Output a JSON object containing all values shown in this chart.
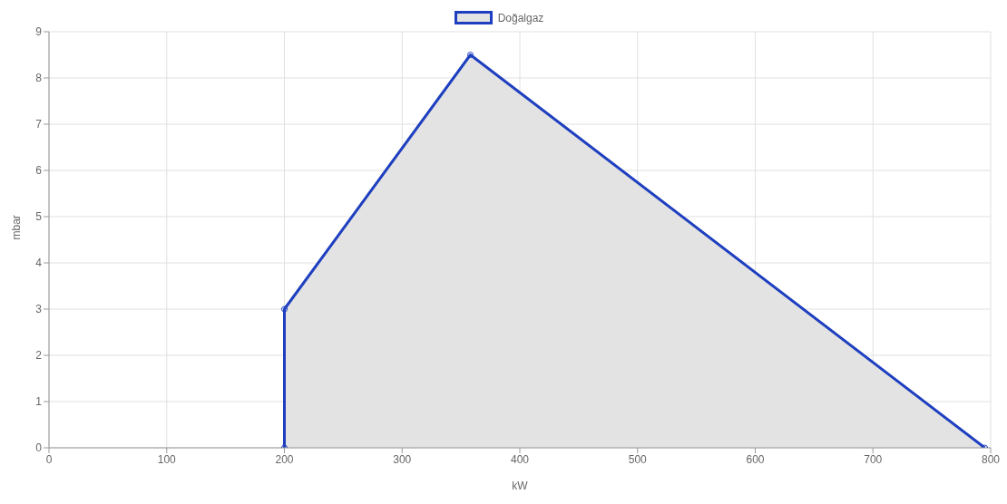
{
  "chart_data": {
    "type": "area",
    "xlabel": "kW",
    "ylabel": "mbar",
    "x": [
      200,
      200,
      358,
      795
    ],
    "series": [
      {
        "name": "Doğalgaz",
        "color": "#1e3fbf",
        "values": [
          0,
          3,
          8.5,
          0
        ]
      }
    ],
    "xlim": [
      0,
      800
    ],
    "xticks": [
      0,
      100,
      200,
      300,
      400,
      500,
      600,
      700,
      800
    ],
    "ylim": [
      0,
      9
    ],
    "yticks": [
      0,
      1,
      2,
      3,
      4,
      5,
      6,
      7,
      8,
      9
    ],
    "grid": true,
    "legend": "top",
    "marker": "circle",
    "line_style": "solid"
  }
}
